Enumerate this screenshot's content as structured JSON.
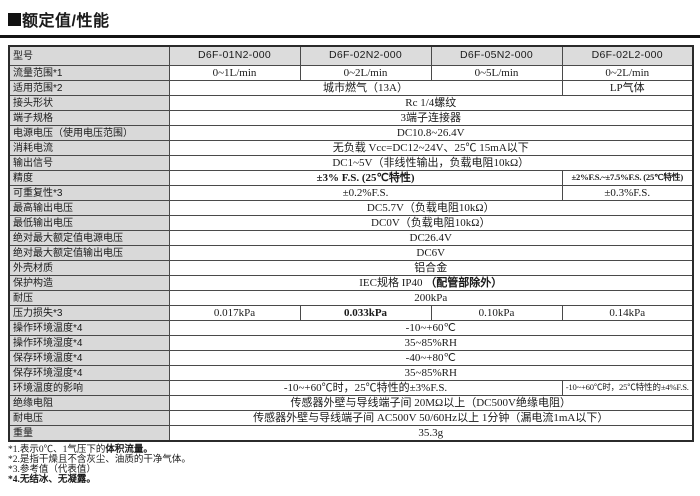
{
  "title": {
    "marker": "■",
    "text": "额定值/性能"
  },
  "table": {
    "header": {
      "label": "型号",
      "models": [
        "D6F-01N2-000",
        "D6F-02N2-000",
        "D6F-05N2-000",
        "D6F-02L2-000"
      ]
    },
    "rows": [
      {
        "label": {
          "t": "流量范围*1",
          "b": false
        },
        "cells": [
          {
            "span": 1,
            "parts": [
              {
                "t": "0~1L/min",
                "b": false
              }
            ]
          },
          {
            "span": 1,
            "parts": [
              {
                "t": "0~2L/min",
                "b": false
              }
            ]
          },
          {
            "span": 1,
            "parts": [
              {
                "t": "0~5L/min",
                "b": false
              }
            ]
          },
          {
            "span": 1,
            "parts": [
              {
                "t": "0~2L/min",
                "b": false
              }
            ]
          }
        ]
      },
      {
        "label": {
          "t": "适用范围*2",
          "b": false
        },
        "cells": [
          {
            "span": 3,
            "parts": [
              {
                "t": "城市燃气（13A）",
                "b": false
              }
            ]
          },
          {
            "span": 1,
            "parts": [
              {
                "t": "LP气体",
                "b": false
              }
            ]
          }
        ]
      },
      {
        "label": {
          "t": "接头形状",
          "b": false
        },
        "cells": [
          {
            "span": 4,
            "parts": [
              {
                "t": "Rc 1/4螺纹",
                "b": false
              }
            ]
          }
        ]
      },
      {
        "label": {
          "t": "端子规格",
          "b": false
        },
        "cells": [
          {
            "span": 4,
            "parts": [
              {
                "t": "3端子连接器",
                "b": false
              }
            ]
          }
        ]
      },
      {
        "label": {
          "t": "电源电压（使用电压范围）",
          "b": false
        },
        "cells": [
          {
            "span": 4,
            "parts": [
              {
                "t": "DC10.8~26.4V",
                "b": false
              }
            ]
          }
        ]
      },
      {
        "label": {
          "t": "消耗电流",
          "b": false
        },
        "cells": [
          {
            "span": 4,
            "parts": [
              {
                "t": "无负载 Vcc=DC12~24V、25℃ 15mA以下",
                "b": false
              }
            ]
          }
        ]
      },
      {
        "label": {
          "t": "输出信号",
          "b": false
        },
        "cells": [
          {
            "span": 4,
            "parts": [
              {
                "t": "DC1~5V（非线性输出，负载电阻10kΩ）",
                "b": false
              }
            ]
          }
        ]
      },
      {
        "label": {
          "t": "精度",
          "b": false
        },
        "cells": [
          {
            "span": 3,
            "parts": [
              {
                "t": "±3% F.S. (25℃特性)",
                "b": true
              }
            ]
          },
          {
            "span": 1,
            "small": true,
            "parts": [
              {
                "t": "±2%F.S.~±7.5%F.S. (25℃特性)",
                "b": true
              }
            ]
          }
        ]
      },
      {
        "label": {
          "t": "可重复性*3",
          "b": false
        },
        "cells": [
          {
            "span": 3,
            "parts": [
              {
                "t": "±0.2%F.S.",
                "b": false
              }
            ]
          },
          {
            "span": 1,
            "parts": [
              {
                "t": "±0.3%F.S.",
                "b": false
              }
            ]
          }
        ]
      },
      {
        "label": {
          "t": "最高输出电压",
          "b": false
        },
        "cells": [
          {
            "span": 4,
            "parts": [
              {
                "t": "DC5.7V（负载电阻10kΩ）",
                "b": false
              }
            ]
          }
        ]
      },
      {
        "label": {
          "t": "最低输出电压",
          "b": false
        },
        "cells": [
          {
            "span": 4,
            "parts": [
              {
                "t": "DC0V（负载电阻10kΩ）",
                "b": false
              }
            ]
          }
        ]
      },
      {
        "label": {
          "t": "绝对最大额定值电源电压",
          "b": false
        },
        "cells": [
          {
            "span": 4,
            "parts": [
              {
                "t": "DC26.4V",
                "b": false
              }
            ]
          }
        ]
      },
      {
        "label": {
          "t": "绝对最大额定值输出电压",
          "b": false
        },
        "cells": [
          {
            "span": 4,
            "parts": [
              {
                "t": "DC6V",
                "b": false
              }
            ]
          }
        ]
      },
      {
        "label": {
          "t": "外壳材质",
          "b": false
        },
        "cells": [
          {
            "span": 4,
            "parts": [
              {
                "t": "铝合金",
                "b": false
              }
            ]
          }
        ]
      },
      {
        "label": {
          "t": "保护构造",
          "b": false
        },
        "cells": [
          {
            "span": 4,
            "parts": [
              {
                "t": "IEC规格 IP40 ",
                "b": false
              },
              {
                "t": "（配管部除外）",
                "b": true
              }
            ]
          }
        ]
      },
      {
        "label": {
          "t": "耐压",
          "b": false
        },
        "cells": [
          {
            "span": 4,
            "parts": [
              {
                "t": "200kPa",
                "b": false
              }
            ]
          }
        ]
      },
      {
        "label": {
          "t": "压力损失*3",
          "b": false
        },
        "cells": [
          {
            "span": 1,
            "parts": [
              {
                "t": "0.017kPa",
                "b": false
              }
            ]
          },
          {
            "span": 1,
            "parts": [
              {
                "t": "0.033kPa",
                "b": true
              }
            ]
          },
          {
            "span": 1,
            "parts": [
              {
                "t": "0.10kPa",
                "b": false
              }
            ]
          },
          {
            "span": 1,
            "parts": [
              {
                "t": "0.14kPa",
                "b": false
              }
            ]
          }
        ]
      },
      {
        "label": {
          "t": "操作环境温度*4",
          "b": false
        },
        "cells": [
          {
            "span": 4,
            "parts": [
              {
                "t": "-10~+60℃",
                "b": false
              }
            ]
          }
        ]
      },
      {
        "label": {
          "t": "操作环境湿度*4",
          "b": false
        },
        "cells": [
          {
            "span": 4,
            "parts": [
              {
                "t": "35~85%RH",
                "b": false
              }
            ]
          }
        ]
      },
      {
        "label": {
          "t": "保存环境温度*4",
          "b": false
        },
        "cells": [
          {
            "span": 4,
            "parts": [
              {
                "t": "-40~+80℃",
                "b": false
              }
            ]
          }
        ]
      },
      {
        "label": {
          "t": "保存环境湿度*4",
          "b": false
        },
        "cells": [
          {
            "span": 4,
            "parts": [
              {
                "t": "35~85%RH",
                "b": false
              }
            ]
          }
        ]
      },
      {
        "label": {
          "t": "环境温度的影响",
          "b": false
        },
        "cells": [
          {
            "span": 3,
            "parts": [
              {
                "t": "-10~+60℃时，25℃特性的±3%F.S.",
                "b": false
              }
            ]
          },
          {
            "span": 1,
            "small": true,
            "parts": [
              {
                "t": "-10~+60℃时，25℃特性的±4%F.S.",
                "b": false
              }
            ]
          }
        ]
      },
      {
        "label": {
          "t": "绝缘电阻",
          "b": false
        },
        "cells": [
          {
            "span": 4,
            "parts": [
              {
                "t": "传感器外壁与导线端子间 20MΩ以上（DC500V绝缘电阻）",
                "b": false
              }
            ]
          }
        ]
      },
      {
        "label": {
          "t": "耐电压",
          "b": true
        },
        "cells": [
          {
            "span": 4,
            "parts": [
              {
                "t": "传感器外壁与导线端子间 AC500V 50/60Hz以上 1分钟（漏电流1mA以下）",
                "b": false
              }
            ]
          }
        ]
      },
      {
        "label": {
          "t": "重量",
          "b": true
        },
        "cells": [
          {
            "span": 4,
            "parts": [
              {
                "t": "35.3g",
                "b": false
              }
            ]
          }
        ]
      }
    ]
  },
  "footnotes": [
    {
      "parts": [
        {
          "t": "*1.表示0℃、1气压下的",
          "b": false
        },
        {
          "t": "体积流量。",
          "b": true
        }
      ]
    },
    {
      "parts": [
        {
          "t": "*2.是指干燥且不含灰尘、油质的干净气体。",
          "b": false
        }
      ]
    },
    {
      "parts": [
        {
          "t": "*3.参考值（代表值）",
          "b": false
        }
      ]
    },
    {
      "parts": [
        {
          "t": "*4.无结冰、无凝露。",
          "b": true
        }
      ]
    }
  ]
}
